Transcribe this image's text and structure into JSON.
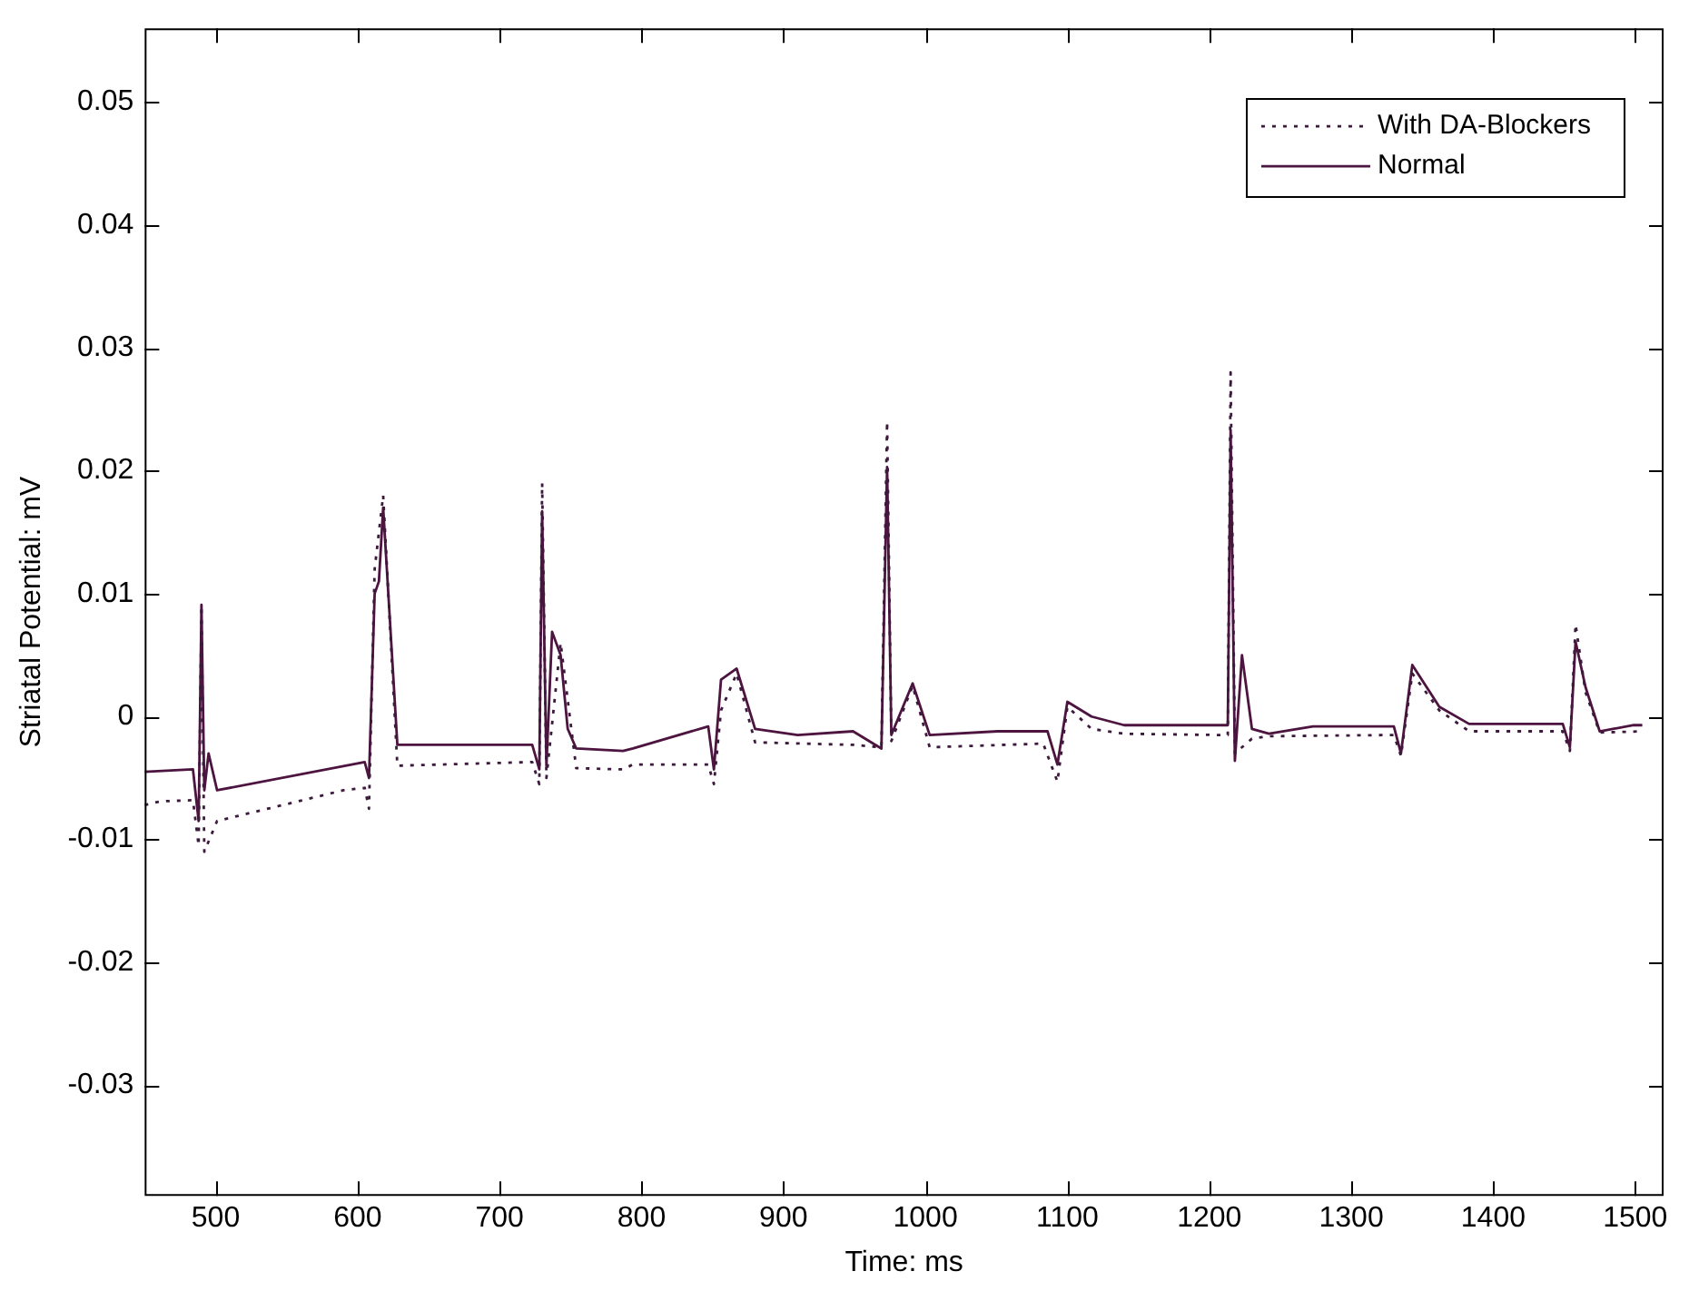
{
  "chart_data": {
    "type": "line",
    "xlabel": "Time: ms",
    "ylabel": "Striatal Potential: mV",
    "xlim": [
      450,
      1520
    ],
    "ylim": [
      -0.039,
      0.056
    ],
    "xticks": [
      500,
      600,
      700,
      800,
      900,
      1000,
      1100,
      1200,
      1300,
      1400,
      1500
    ],
    "yticks": [
      -0.03,
      -0.02,
      -0.01,
      0,
      0.01,
      0.02,
      0.03,
      0.04,
      0.05
    ],
    "legend": "top right",
    "marker": "none",
    "series": [
      {
        "name": "With DA-Blockers",
        "color": "#3c1a3c",
        "line_style": "dotted",
        "x": [
          450,
          461,
          484,
          488,
          490,
          492,
          501,
          590,
          605,
          608,
          612,
          618,
          628,
          723,
          728,
          730,
          733,
          743,
          754,
          787,
          794,
          847,
          851,
          856,
          867,
          880,
          949,
          969,
          973,
          976,
          991,
          1003,
          1083,
          1093,
          1100,
          1117,
          1140,
          1206,
          1213,
          1215,
          1218,
          1230,
          1242,
          1330,
          1335,
          1343,
          1362,
          1383,
          1449,
          1454,
          1458,
          1465,
          1475,
          1505
        ],
        "values": [
          -0.0072,
          -0.0069,
          -0.0068,
          -0.0105,
          0.009,
          -0.011,
          -0.0085,
          -0.006,
          -0.0058,
          -0.0075,
          0.012,
          0.018,
          -0.004,
          -0.0037,
          -0.0055,
          0.019,
          -0.005,
          0.006,
          -0.0042,
          -0.0043,
          -0.0039,
          -0.0039,
          -0.0055,
          0.0005,
          0.0035,
          -0.0021,
          -0.0023,
          -0.0025,
          0.024,
          -0.002,
          0.0025,
          -0.0025,
          -0.0022,
          -0.0053,
          0.0008,
          -0.001,
          -0.0014,
          -0.0015,
          -0.0015,
          0.028,
          -0.003,
          -0.0018,
          -0.0016,
          -0.0015,
          -0.0032,
          0.0035,
          0.0005,
          -0.0012,
          -0.0012,
          -0.0028,
          0.0075,
          0.002,
          -0.0013,
          -0.0012
        ]
      },
      {
        "name": "Normal",
        "color": "#4d1440",
        "line_style": "solid",
        "x": [
          450,
          484,
          488,
          490,
          492,
          495,
          501,
          605,
          608,
          612,
          615,
          618,
          628,
          723,
          728,
          730,
          733,
          737,
          743,
          748,
          754,
          787,
          794,
          847,
          851,
          856,
          867,
          880,
          910,
          949,
          969,
          973,
          976,
          991,
          1003,
          1051,
          1086,
          1093,
          1100,
          1117,
          1140,
          1153,
          1206,
          1213,
          1215,
          1218,
          1223,
          1230,
          1242,
          1273,
          1330,
          1335,
          1343,
          1362,
          1383,
          1449,
          1454,
          1458,
          1465,
          1475,
          1499,
          1505
        ],
        "values": [
          -0.0045,
          -0.0043,
          -0.0085,
          0.0091,
          -0.006,
          -0.003,
          -0.006,
          -0.0037,
          -0.005,
          0.01,
          0.011,
          0.017,
          -0.0023,
          -0.0023,
          -0.0043,
          0.0167,
          -0.004,
          0.0069,
          0.005,
          -0.001,
          -0.0026,
          -0.0028,
          -0.0026,
          -0.0008,
          -0.0043,
          0.003,
          0.0039,
          -0.001,
          -0.0015,
          -0.0012,
          -0.0026,
          0.0203,
          -0.0015,
          0.0027,
          -0.0015,
          -0.0012,
          -0.0012,
          -0.0039,
          0.0012,
          0,
          -0.0007,
          -0.0007,
          -0.0007,
          -0.0007,
          0.0233,
          -0.0036,
          0.005,
          -0.001,
          -0.0014,
          -0.0008,
          -0.0008,
          -0.003,
          0.0042,
          0.0008,
          -0.0006,
          -0.0006,
          -0.0025,
          0.0061,
          0.0024,
          -0.0012,
          -0.0007,
          -0.0007
        ]
      }
    ]
  }
}
